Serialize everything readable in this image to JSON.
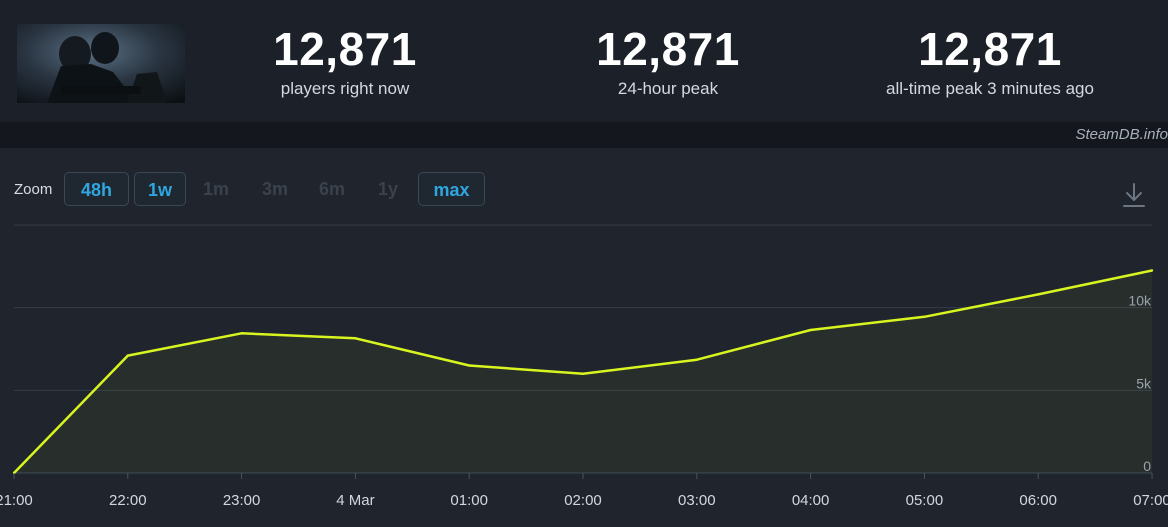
{
  "header": {
    "stats": [
      {
        "value": "12,871",
        "label": "players right now"
      },
      {
        "value": "12,871",
        "label": "24-hour peak"
      },
      {
        "value": "12,871",
        "label": "all-time peak 3 minutes ago"
      }
    ],
    "watermark": "SteamDB.info"
  },
  "zoom": {
    "label": "Zoom",
    "buttons": [
      {
        "label": "48h",
        "state": "active"
      },
      {
        "label": "1w",
        "state": "active"
      },
      {
        "label": "1m",
        "state": "disabled"
      },
      {
        "label": "3m",
        "state": "disabled"
      },
      {
        "label": "6m",
        "state": "disabled"
      },
      {
        "label": "1y",
        "state": "disabled"
      },
      {
        "label": "max",
        "state": "active"
      }
    ]
  },
  "icons": {
    "download": "download-icon"
  },
  "colors": {
    "line": "#d8f51f",
    "accent": "#2fa6e0"
  },
  "chart_data": {
    "type": "line",
    "x": [
      "21:00",
      "22:00",
      "23:00",
      "4 Mar",
      "01:00",
      "02:00",
      "03:00",
      "04:00",
      "05:00",
      "06:00",
      "07:00"
    ],
    "series": [
      {
        "values": [
          0,
          7100,
          8450,
          8150,
          6500,
          6000,
          6850,
          8650,
          9450,
          10800,
          12250
        ]
      }
    ],
    "y_ticks": [
      {
        "value": 0,
        "label": "0"
      },
      {
        "value": 5000,
        "label": "5k"
      },
      {
        "value": 10000,
        "label": "10k"
      }
    ],
    "ylim": [
      0,
      15000
    ],
    "grid": true
  }
}
